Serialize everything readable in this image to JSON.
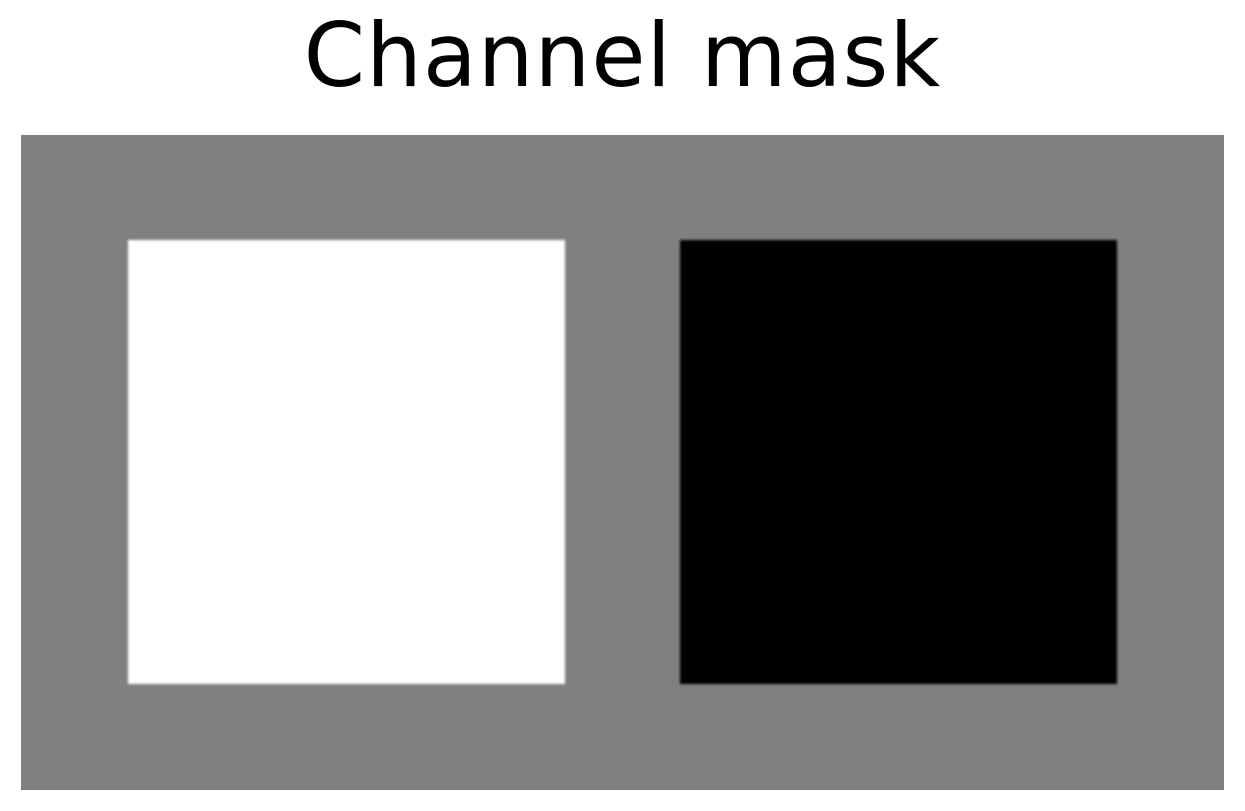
{
  "title": "Channel mask",
  "colors": {
    "background": "#808080",
    "left_region": "#ffffff",
    "right_region": "#000000"
  }
}
